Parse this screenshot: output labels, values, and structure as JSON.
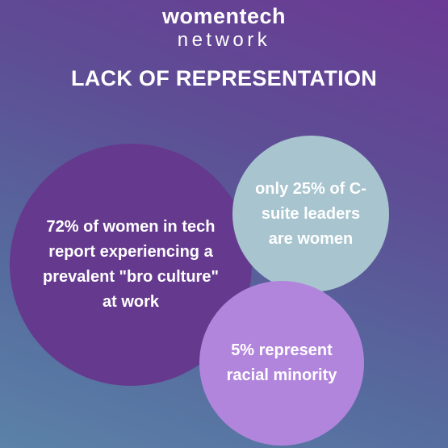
{
  "logo": {
    "line1": "womentech",
    "line2": "network"
  },
  "headline": "LACK OF REPRESENTATION",
  "stats": [
    {
      "text": "72% of women in tech report experiencing a prevalent \"bro culture\" at work",
      "color": "#653a8e"
    },
    {
      "text": "only 25% of C-suite leaders are women",
      "color": "#a7c4cf"
    },
    {
      "text": "5% represent racial minority",
      "color": "#b285dc"
    }
  ],
  "colors": {
    "background_top": "#6b3a94",
    "background_bottom": "#5b82a8",
    "text": "#ffffff"
  }
}
